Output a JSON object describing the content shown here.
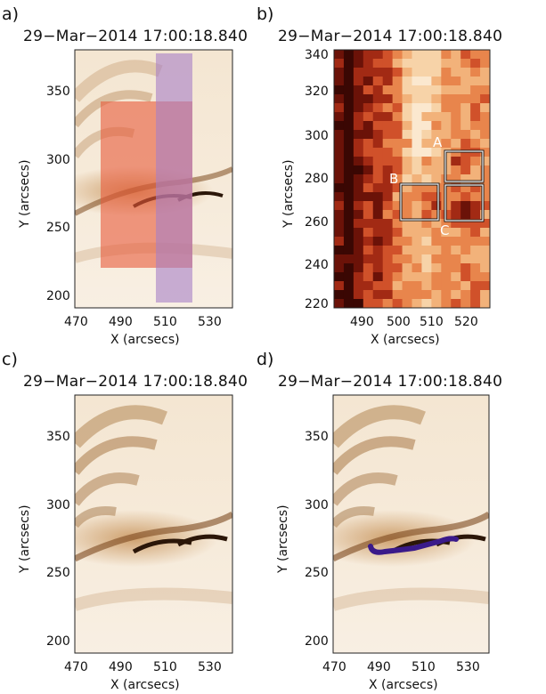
{
  "panels": [
    {
      "label": "a)",
      "title": "29−Mar−2014  17:00:18.840",
      "xlabel": "X (arcsecs)",
      "ylabel": "Y (arcsecs)",
      "xticks": [
        "470",
        "490",
        "510",
        "530"
      ],
      "yticks": [
        "350",
        "300",
        "250",
        "200"
      ]
    },
    {
      "label": "b)",
      "title": "29−Mar−2014  17:00:18.840",
      "xlabel": "X (arcsecs)",
      "ylabel": "Y (arcsecs)",
      "xticks": [
        "490",
        "500",
        "510",
        "520"
      ],
      "yticks": [
        "340",
        "320",
        "300",
        "280",
        "260",
        "240",
        "220"
      ],
      "boxes": [
        "A",
        "B",
        "C"
      ]
    },
    {
      "label": "c)",
      "title": "29−Mar−2014  17:00:18.840",
      "xlabel": "X (arcsecs)",
      "ylabel": "Y (arcsecs)",
      "xticks": [
        "470",
        "490",
        "510",
        "530"
      ],
      "yticks": [
        "350",
        "300",
        "250",
        "200"
      ]
    },
    {
      "label": "d)",
      "title": "29−Mar−2014  17:00:18.840",
      "xlabel": "X (arcsecs)",
      "ylabel": "Y (arcsecs)",
      "xticks": [
        "470",
        "490",
        "510",
        "530"
      ],
      "yticks": [
        "350",
        "300",
        "250",
        "200"
      ]
    }
  ],
  "colors": {
    "slit_region": "#e85a3a",
    "raster_region": "#a77fc7",
    "trajectory": "#3a1a8a",
    "box_outline": "#ffffff"
  }
}
